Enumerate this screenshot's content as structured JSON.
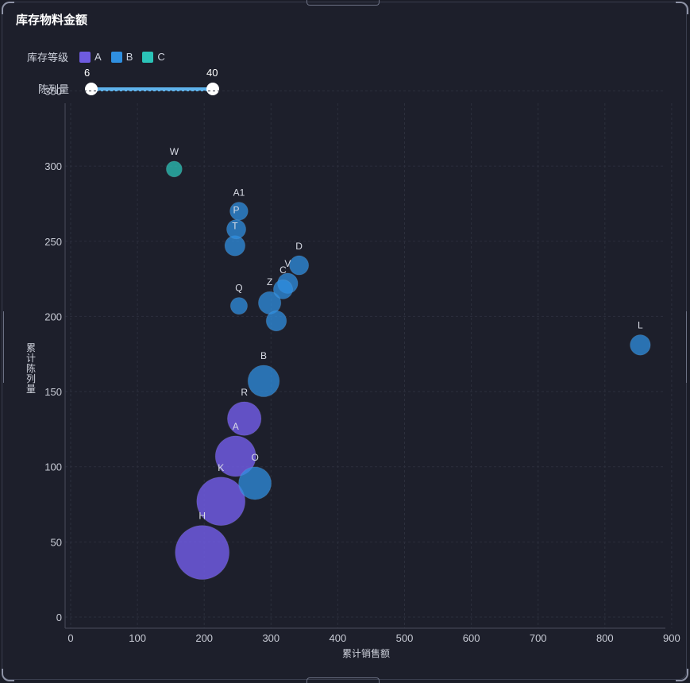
{
  "title": "库存物料金额",
  "legend": {
    "label": "库存等级",
    "items": [
      {
        "name": "A",
        "color": "#6e5be0"
      },
      {
        "name": "B",
        "color": "#2f8fe0"
      },
      {
        "name": "C",
        "color": "#2bc3b8"
      }
    ]
  },
  "slider": {
    "label": "陈列量",
    "min": "6",
    "max": "40"
  },
  "chart_data": {
    "type": "scatter",
    "xlabel": "累计销售额",
    "ylabel": "累计陈列量",
    "xlim": [
      0,
      900
    ],
    "ylim": [
      0,
      350
    ],
    "xticks": [
      0,
      100,
      200,
      300,
      400,
      500,
      600,
      700,
      800,
      900
    ],
    "yticks": [
      0,
      50,
      100,
      150,
      200,
      250,
      300,
      350
    ],
    "grid": true,
    "bubble_size_label": "陈列量",
    "points": [
      {
        "label": "W",
        "x": 155,
        "y": 298,
        "size": 6,
        "level": "C"
      },
      {
        "label": "A1",
        "x": 252,
        "y": 270,
        "size": 8,
        "level": "B"
      },
      {
        "label": "P",
        "x": 248,
        "y": 258,
        "size": 9,
        "level": "B"
      },
      {
        "label": "T",
        "x": 246,
        "y": 247,
        "size": 10,
        "level": "B"
      },
      {
        "label": "D",
        "x": 342,
        "y": 234,
        "size": 9,
        "level": "B"
      },
      {
        "label": "V",
        "x": 325,
        "y": 222,
        "size": 10,
        "level": "B"
      },
      {
        "label": "C",
        "x": 318,
        "y": 218,
        "size": 9,
        "level": "B"
      },
      {
        "label": "Q",
        "x": 252,
        "y": 207,
        "size": 7,
        "level": "B"
      },
      {
        "label": "Z",
        "x": 298,
        "y": 209,
        "size": 12,
        "level": "B"
      },
      {
        "label": "",
        "x": 308,
        "y": 197,
        "size": 10,
        "level": "B"
      },
      {
        "label": "L",
        "x": 853,
        "y": 181,
        "size": 10,
        "level": "B"
      },
      {
        "label": "B",
        "x": 289,
        "y": 157,
        "size": 20,
        "level": "B"
      },
      {
        "label": "R",
        "x": 260,
        "y": 132,
        "size": 22,
        "level": "A"
      },
      {
        "label": "A",
        "x": 247,
        "y": 107,
        "size": 28,
        "level": "A"
      },
      {
        "label": "O",
        "x": 276,
        "y": 89,
        "size": 21,
        "level": "B"
      },
      {
        "label": "K",
        "x": 225,
        "y": 77,
        "size": 35,
        "level": "A"
      },
      {
        "label": "H",
        "x": 197,
        "y": 43,
        "size": 40,
        "level": "A"
      }
    ]
  }
}
